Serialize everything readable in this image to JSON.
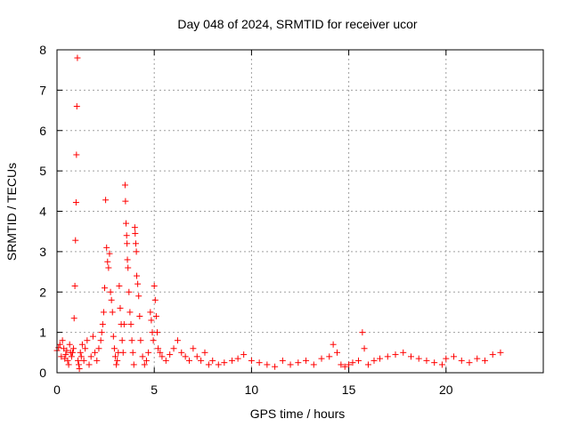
{
  "chart_data": {
    "type": "scatter",
    "title": "Day 048 of 2024, SRMTID for receiver ucor",
    "xlabel": "GPS time / hours",
    "ylabel": "SRMTID / TECUs",
    "xlim": [
      0,
      25
    ],
    "ylim": [
      0,
      8
    ],
    "xticks": [
      0,
      5,
      10,
      15,
      20
    ],
    "yticks": [
      0,
      1,
      2,
      3,
      4,
      5,
      6,
      7,
      8
    ],
    "grid": true,
    "marker": "+",
    "color": "#ff0000",
    "series": [
      {
        "name": "SRMTID",
        "x": [
          0.0,
          0.08,
          0.15,
          0.22,
          0.28,
          0.35,
          0.4,
          0.45,
          0.5,
          0.55,
          0.6,
          0.65,
          0.7,
          0.75,
          0.8,
          0.85,
          0.88,
          0.92,
          0.95,
          0.98,
          1.0,
          1.02,
          1.05,
          1.08,
          1.12,
          1.15,
          1.2,
          1.25,
          1.3,
          1.38,
          1.45,
          1.55,
          1.65,
          1.75,
          1.85,
          1.95,
          2.05,
          2.15,
          2.25,
          2.3,
          2.35,
          2.4,
          2.45,
          2.5,
          2.55,
          2.6,
          2.65,
          2.7,
          2.75,
          2.8,
          2.85,
          2.9,
          2.95,
          3.0,
          3.05,
          3.1,
          3.15,
          3.2,
          3.25,
          3.3,
          3.35,
          3.4,
          3.45,
          3.5,
          3.52,
          3.55,
          3.58,
          3.6,
          3.62,
          3.65,
          3.7,
          3.75,
          3.8,
          3.85,
          3.9,
          3.95,
          4.0,
          4.02,
          4.05,
          4.08,
          4.1,
          4.15,
          4.2,
          4.25,
          4.3,
          4.4,
          4.5,
          4.6,
          4.7,
          4.8,
          4.85,
          4.9,
          4.95,
          5.0,
          5.05,
          5.1,
          5.15,
          5.2,
          5.3,
          5.4,
          5.6,
          5.8,
          6.0,
          6.2,
          6.4,
          6.6,
          6.8,
          7.0,
          7.2,
          7.4,
          7.6,
          7.8,
          8.0,
          8.3,
          8.6,
          9.0,
          9.3,
          9.6,
          10.0,
          10.4,
          10.8,
          11.2,
          11.6,
          12.0,
          12.4,
          12.8,
          13.2,
          13.6,
          14.0,
          14.2,
          14.4,
          14.6,
          14.8,
          15.0,
          15.2,
          15.5,
          15.7,
          15.8,
          16.0,
          16.3,
          16.6,
          17.0,
          17.4,
          17.8,
          18.2,
          18.6,
          19.0,
          19.4,
          19.8,
          20.0,
          20.4,
          20.8,
          21.2,
          21.6,
          22.0,
          22.4,
          22.8
        ],
        "y": [
          0.55,
          0.62,
          0.7,
          0.4,
          0.8,
          0.6,
          0.35,
          0.45,
          0.55,
          0.3,
          0.2,
          0.7,
          0.5,
          0.4,
          0.5,
          0.6,
          1.35,
          2.15,
          3.28,
          4.22,
          5.4,
          6.6,
          7.8,
          0.3,
          0.2,
          0.1,
          0.5,
          0.4,
          0.7,
          0.3,
          0.6,
          0.8,
          0.2,
          0.4,
          0.9,
          0.5,
          0.3,
          0.6,
          0.8,
          1.0,
          1.2,
          1.5,
          2.1,
          4.28,
          3.1,
          2.75,
          2.6,
          2.95,
          2.0,
          1.8,
          1.5,
          0.9,
          0.6,
          0.4,
          0.2,
          0.3,
          0.5,
          2.15,
          1.6,
          1.2,
          0.8,
          0.5,
          1.2,
          4.65,
          4.25,
          3.7,
          3.4,
          3.2,
          2.8,
          2.6,
          2.0,
          1.5,
          1.2,
          0.8,
          0.5,
          0.2,
          3.6,
          3.45,
          3.2,
          3.0,
          2.4,
          2.2,
          1.9,
          1.4,
          0.8,
          0.4,
          0.2,
          0.3,
          0.5,
          1.5,
          1.3,
          1.0,
          0.8,
          2.15,
          1.8,
          1.4,
          1.0,
          0.6,
          0.5,
          0.4,
          0.3,
          0.45,
          0.6,
          0.8,
          0.5,
          0.4,
          0.3,
          0.6,
          0.4,
          0.3,
          0.5,
          0.2,
          0.3,
          0.2,
          0.25,
          0.3,
          0.35,
          0.45,
          0.3,
          0.25,
          0.2,
          0.15,
          0.3,
          0.2,
          0.25,
          0.3,
          0.2,
          0.35,
          0.4,
          0.7,
          0.5,
          0.2,
          0.15,
          0.2,
          0.25,
          0.3,
          1.0,
          0.6,
          0.2,
          0.3,
          0.35,
          0.4,
          0.45,
          0.5,
          0.4,
          0.35,
          0.3,
          0.25,
          0.2,
          0.35,
          0.4,
          0.3,
          0.25,
          0.35,
          0.3,
          0.45,
          0.5
        ]
      }
    ]
  }
}
